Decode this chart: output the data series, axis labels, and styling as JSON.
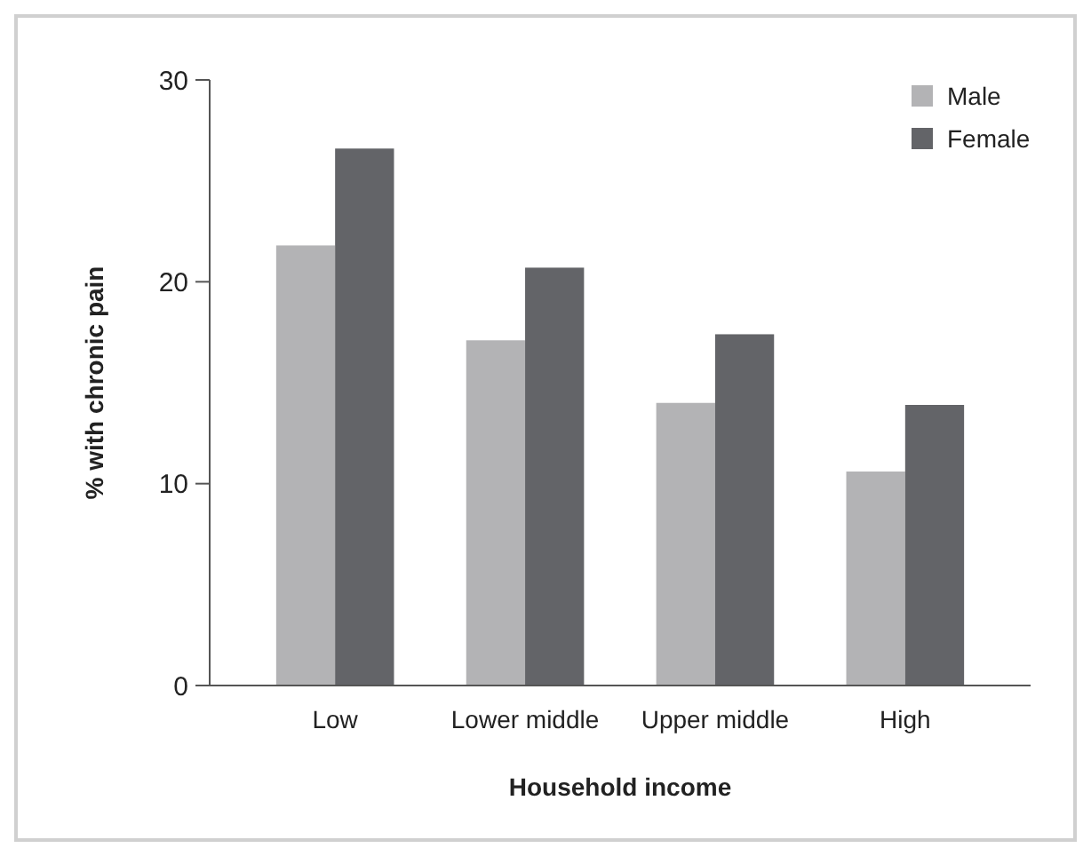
{
  "chart_data": {
    "type": "bar",
    "xlabel": "Household income",
    "ylabel": "% with chronic pain",
    "categories": [
      "Low",
      "Lower middle",
      "Upper middle",
      "High"
    ],
    "series": [
      {
        "name": "Male",
        "color": "#b3b3b5",
        "values": [
          21.8,
          17.1,
          14.0,
          10.6
        ]
      },
      {
        "name": "Female",
        "color": "#636468",
        "values": [
          26.6,
          20.7,
          17.4,
          13.9
        ]
      }
    ],
    "ylim": [
      0,
      30
    ],
    "yticks": [
      0,
      10,
      20,
      30
    ],
    "grid": false,
    "legend": "top right"
  }
}
